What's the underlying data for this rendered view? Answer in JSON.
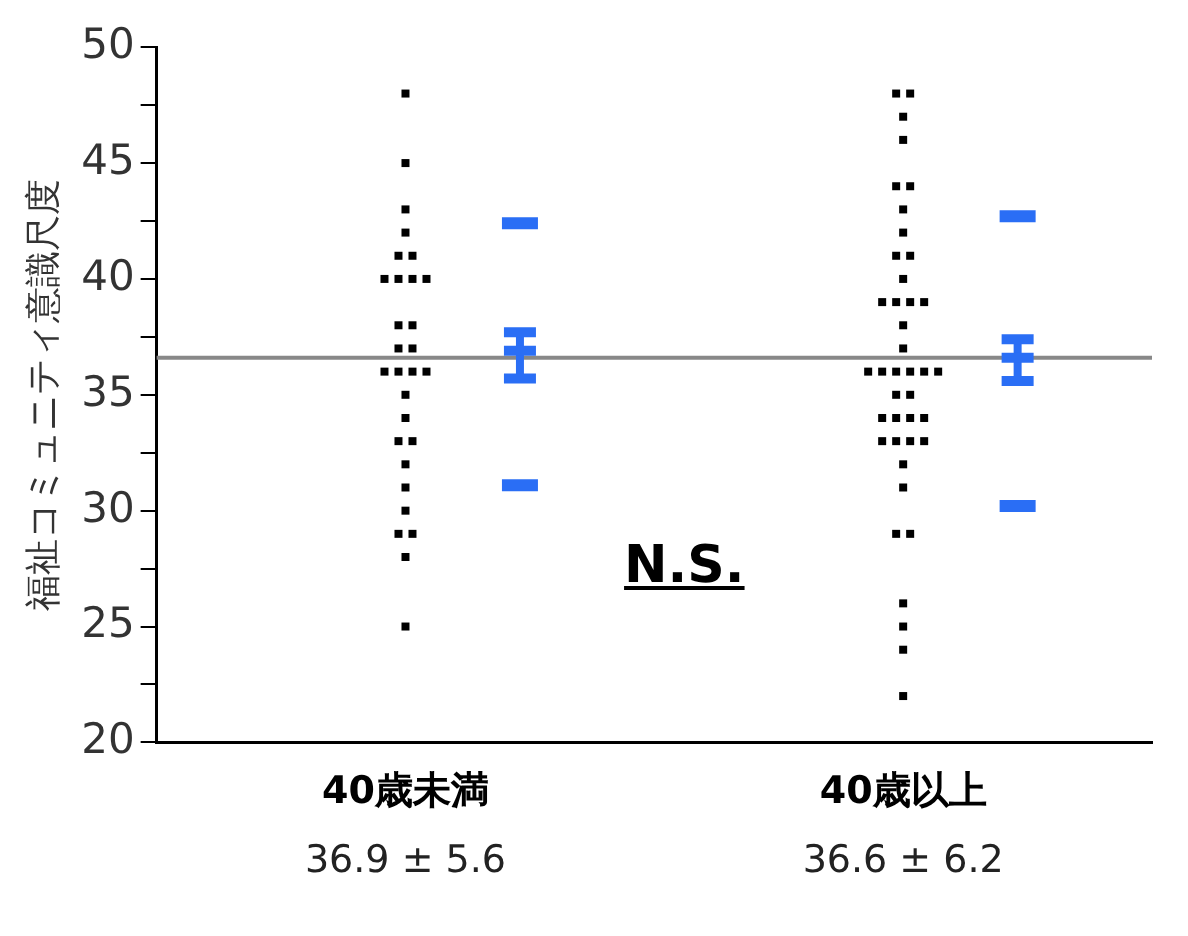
{
  "chart_data": {
    "type": "scatter",
    "ylabel": "福祉コミュニティ意識尺度",
    "categories": [
      "40歳未満",
      "40歳以上"
    ],
    "ylim": [
      20,
      50
    ],
    "yticks": [
      20,
      {
        "value": 22.5,
        "label": null
      },
      25,
      {
        "value": 27.5,
        "label": null
      },
      30,
      {
        "value": 32.5,
        "label": null
      },
      35,
      {
        "value": 37.5,
        "label": null
      },
      40,
      {
        "value": 42.5,
        "label": null
      },
      45,
      {
        "value": 47.5,
        "label": null
      },
      50
    ],
    "grid": false,
    "legend": false,
    "series": [
      {
        "type": "scatter",
        "color": "#000000",
        "marker": "square",
        "x": [
          "40歳未満",
          "40歳未満",
          "40歳未満",
          "40歳未満",
          "40歳未満",
          "40歳未満",
          "40歳未満",
          "40歳未満",
          "40歳未満",
          "40歳未満",
          "40歳未満",
          "40歳未満",
          "40歳未満",
          "40歳未満",
          "40歳未満",
          "40歳未満",
          "40歳未満",
          "40歳未満",
          "40歳未満",
          "40歳未満",
          "40歳未満",
          "40歳未満",
          "40歳未満",
          "40歳未満",
          "40歳未満",
          "40歳未満",
          "40歳未満",
          "40歳未満",
          "40歳未満"
        ],
        "values": [
          48,
          45,
          43,
          42,
          41,
          41,
          40,
          40,
          40,
          38,
          38,
          37,
          37,
          36,
          36,
          36,
          35,
          34,
          33,
          33,
          32,
          31,
          30,
          29,
          29,
          28,
          25,
          36,
          40
        ]
      },
      {
        "type": "scatter",
        "color": "#000000",
        "marker": "square",
        "x": [
          "40歳以上",
          "40歳以上",
          "40歳以上",
          "40歳以上",
          "40歳以上",
          "40歳以上",
          "40歳以上",
          "40歳以上",
          "40歳以上",
          "40歳以上",
          "40歳以上",
          "40歳以上",
          "40歳以上",
          "40歳以上",
          "40歳以上",
          "40歳以上",
          "40歳以上",
          "40歳以上",
          "40歳以上",
          "40歳以上",
          "40歳以上",
          "40歳以上",
          "40歳以上",
          "40歳以上",
          "40歳以上",
          "40歳以上",
          "40歳以上",
          "40歳以上",
          "40歳以上",
          "40歳以上",
          "40歳以上",
          "40歳以上",
          "40歳以上",
          "40歳以上",
          "40歳以上",
          "40歳以上",
          "40歳以上",
          "40歳以上",
          "40歳以上",
          "40歳以上",
          "40歳以上"
        ],
        "values": [
          48,
          48,
          47,
          46,
          44,
          44,
          43,
          42,
          41,
          41,
          40,
          39,
          39,
          39,
          38,
          37,
          36,
          36,
          36,
          36,
          36,
          36,
          35,
          35,
          34,
          34,
          34,
          34,
          33,
          33,
          33,
          32,
          31,
          29,
          29,
          26,
          25,
          24,
          22,
          39,
          33
        ]
      },
      {
        "type": "scatter",
        "color": "#2a6ef5",
        "marker": "square",
        "line_style": "solid",
        "values": [
          36.9,
          36.6
        ],
        "errors": [
          [
            35.7,
            37.7
          ],
          [
            35.6,
            37.4
          ]
        ]
      },
      {
        "type": "scatter",
        "color": "#2a6ef5",
        "marker": "square",
        "values": [
          42.4,
          42.7
        ]
      },
      {
        "type": "scatter",
        "color": "#2a6ef5",
        "marker": "square",
        "values": [
          31.1,
          30.2
        ]
      }
    ],
    "ref_lines": [
      {
        "axis": "y",
        "value": 36.6,
        "color": "#888888"
      }
    ],
    "annotations": [
      "N.S.",
      "36.9 ± 5.6",
      "36.6 ± 6.2"
    ]
  }
}
